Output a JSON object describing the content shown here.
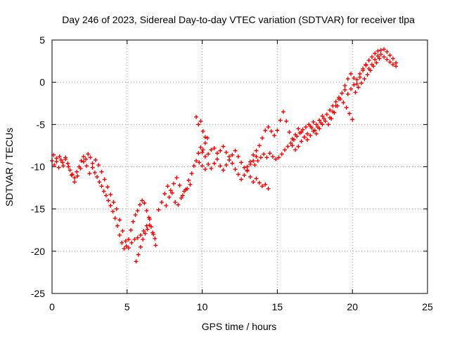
{
  "chart_data": {
    "type": "scatter",
    "title": "Day 246 of 2023, Sidereal Day-to-day VTEC variation (SDTVAR) for receiver tlpa",
    "xlabel": "GPS time / hours",
    "ylabel": "SDTVAR / TECUs",
    "xlim": [
      0,
      25
    ],
    "ylim": [
      -25,
      5
    ],
    "xticks": [
      0,
      5,
      10,
      15,
      20,
      25
    ],
    "yticks": [
      -25,
      -20,
      -15,
      -10,
      -5,
      0,
      5
    ],
    "grid": true,
    "marker": "+",
    "color": "#ff0000",
    "series": [
      {
        "name": "SDTVAR",
        "points": [
          [
            0.0,
            -9.3
          ],
          [
            0.15,
            -9.8
          ],
          [
            0.3,
            -9.0
          ],
          [
            0.45,
            -10.1
          ],
          [
            0.6,
            -9.2
          ],
          [
            0.75,
            -9.9
          ],
          [
            0.9,
            -8.9
          ],
          [
            1.05,
            -9.6
          ],
          [
            1.2,
            -10.4
          ],
          [
            1.35,
            -10.9
          ],
          [
            1.5,
            -11.3
          ],
          [
            1.65,
            -10.6
          ],
          [
            1.8,
            -10.0
          ],
          [
            1.95,
            -9.3
          ],
          [
            2.1,
            -8.8
          ],
          [
            2.25,
            -9.1
          ],
          [
            2.4,
            -8.5
          ],
          [
            2.55,
            -8.9
          ],
          [
            2.7,
            -9.6
          ],
          [
            2.85,
            -10.7
          ],
          [
            3.0,
            -11.2
          ],
          [
            3.15,
            -11.8
          ],
          [
            3.3,
            -12.3
          ],
          [
            3.45,
            -12.9
          ],
          [
            3.6,
            -13.4
          ],
          [
            3.75,
            -14.0
          ],
          [
            3.9,
            -14.6
          ],
          [
            4.05,
            -15.3
          ],
          [
            4.2,
            -16.1
          ],
          [
            4.35,
            -17.0
          ],
          [
            4.5,
            -18.1
          ],
          [
            4.65,
            -19.0
          ],
          [
            4.8,
            -19.7
          ],
          [
            4.95,
            -19.4
          ],
          [
            5.1,
            -18.6
          ],
          [
            5.25,
            -17.5
          ],
          [
            5.4,
            -16.5
          ],
          [
            5.55,
            -15.7
          ],
          [
            5.7,
            -15.2
          ],
          [
            5.85,
            -14.5
          ],
          [
            6.0,
            -14.0
          ],
          [
            6.15,
            -14.3
          ],
          [
            6.3,
            -15.2
          ],
          [
            6.45,
            -16.0
          ],
          [
            6.6,
            -17.1
          ],
          [
            6.75,
            -18.0
          ],
          [
            6.9,
            -19.3
          ],
          [
            0.1,
            -8.6
          ],
          [
            0.3,
            -9.4
          ],
          [
            0.5,
            -8.8
          ],
          [
            0.7,
            -9.5
          ],
          [
            0.9,
            -9.1
          ],
          [
            1.1,
            -10.0
          ],
          [
            1.3,
            -11.0
          ],
          [
            1.5,
            -11.8
          ],
          [
            1.7,
            -11.1
          ],
          [
            1.9,
            -10.2
          ],
          [
            2.1,
            -9.4
          ],
          [
            2.3,
            -9.9
          ],
          [
            2.5,
            -10.8
          ],
          [
            2.7,
            -10.1
          ],
          [
            2.9,
            -9.2
          ],
          [
            3.1,
            -9.8
          ],
          [
            3.3,
            -10.6
          ],
          [
            3.5,
            -11.5
          ],
          [
            3.7,
            -12.4
          ],
          [
            3.9,
            -13.3
          ],
          [
            4.1,
            -14.2
          ],
          [
            4.3,
            -15.0
          ],
          [
            4.5,
            -16.3
          ],
          [
            4.7,
            -17.6
          ],
          [
            4.9,
            -18.8
          ],
          [
            5.1,
            -19.6
          ],
          [
            5.3,
            -19.0
          ],
          [
            5.5,
            -18.6
          ],
          [
            5.7,
            -18.4
          ],
          [
            5.9,
            -18.1
          ],
          [
            6.1,
            -17.6
          ],
          [
            6.3,
            -17.0
          ],
          [
            6.5,
            -16.2
          ],
          [
            5.6,
            -21.2
          ],
          [
            5.75,
            -20.4
          ],
          [
            5.9,
            -19.5
          ],
          [
            6.05,
            -18.6
          ],
          [
            6.2,
            -17.9
          ],
          [
            6.35,
            -17.4
          ],
          [
            6.5,
            -16.9
          ],
          [
            6.7,
            -17.8
          ],
          [
            6.85,
            -18.5
          ],
          [
            7.1,
            -15.1
          ],
          [
            7.3,
            -14.2
          ],
          [
            7.5,
            -13.2
          ],
          [
            7.7,
            -12.3
          ],
          [
            7.9,
            -12.8
          ],
          [
            8.1,
            -12.0
          ],
          [
            8.3,
            -11.3
          ],
          [
            8.5,
            -12.2
          ],
          [
            8.7,
            -13.4
          ],
          [
            8.9,
            -12.7
          ],
          [
            9.1,
            -11.6
          ],
          [
            9.3,
            -10.8
          ],
          [
            7.6,
            -14.6
          ],
          [
            7.8,
            -13.6
          ],
          [
            8.0,
            -13.1
          ],
          [
            8.2,
            -14.2
          ],
          [
            8.4,
            -14.5
          ],
          [
            8.6,
            -13.7
          ],
          [
            8.8,
            -12.9
          ],
          [
            9.0,
            -12.6
          ],
          [
            9.2,
            -12.1
          ],
          [
            9.45,
            -9.9
          ],
          [
            9.6,
            -9.3
          ],
          [
            9.75,
            -8.4
          ],
          [
            9.9,
            -7.7
          ],
          [
            10.05,
            -8.0
          ],
          [
            10.2,
            -7.2
          ],
          [
            10.35,
            -6.6
          ],
          [
            9.6,
            -4.1
          ],
          [
            9.75,
            -5.0
          ],
          [
            9.9,
            -4.6
          ],
          [
            10.05,
            -5.8
          ],
          [
            10.2,
            -6.5
          ],
          [
            9.8,
            -9.5
          ],
          [
            10.0,
            -9.9
          ],
          [
            10.2,
            -10.3
          ],
          [
            10.4,
            -9.7
          ],
          [
            10.6,
            -10.2
          ],
          [
            10.8,
            -9.6
          ],
          [
            11.0,
            -9.1
          ],
          [
            11.2,
            -9.9
          ],
          [
            11.4,
            -10.4
          ],
          [
            11.6,
            -9.8
          ],
          [
            11.8,
            -9.2
          ],
          [
            12.0,
            -8.6
          ],
          [
            12.2,
            -8.1
          ],
          [
            12.4,
            -8.8
          ],
          [
            12.6,
            -9.5
          ],
          [
            12.8,
            -10.1
          ],
          [
            13.0,
            -10.5
          ],
          [
            13.2,
            -11.2
          ],
          [
            13.4,
            -11.8
          ],
          [
            13.6,
            -11.4
          ],
          [
            13.8,
            -11.9
          ],
          [
            14.0,
            -12.3
          ],
          [
            14.2,
            -12.1
          ],
          [
            14.4,
            -12.6
          ],
          [
            10.0,
            -8.3
          ],
          [
            10.2,
            -8.8
          ],
          [
            10.4,
            -8.5
          ],
          [
            10.6,
            -8.0
          ],
          [
            10.8,
            -7.8
          ],
          [
            11.0,
            -8.4
          ],
          [
            11.2,
            -8.1
          ],
          [
            11.4,
            -7.6
          ],
          [
            11.6,
            -8.3
          ],
          [
            11.8,
            -8.8
          ],
          [
            12.0,
            -9.6
          ],
          [
            12.2,
            -10.3
          ],
          [
            12.4,
            -10.9
          ],
          [
            12.6,
            -11.5
          ],
          [
            12.8,
            -11.0
          ],
          [
            13.0,
            -10.4
          ],
          [
            13.2,
            -9.7
          ],
          [
            13.4,
            -9.3
          ],
          [
            13.6,
            -8.8
          ],
          [
            13.0,
            -10.0
          ],
          [
            13.2,
            -9.4
          ],
          [
            13.4,
            -8.6
          ],
          [
            13.6,
            -8.1
          ],
          [
            13.8,
            -7.5
          ],
          [
            14.0,
            -6.6
          ],
          [
            14.2,
            -5.7
          ],
          [
            14.4,
            -5.3
          ],
          [
            14.6,
            -5.8
          ],
          [
            14.8,
            -6.3
          ],
          [
            15.0,
            -5.7
          ],
          [
            15.2,
            -4.5
          ],
          [
            15.4,
            -3.5
          ],
          [
            15.6,
            -4.6
          ],
          [
            15.8,
            -5.9
          ],
          [
            16.0,
            -6.7
          ],
          [
            16.2,
            -6.2
          ],
          [
            16.4,
            -5.5
          ],
          [
            16.6,
            -5.9
          ],
          [
            16.8,
            -6.5
          ],
          [
            17.0,
            -6.1
          ],
          [
            17.2,
            -5.2
          ],
          [
            17.4,
            -4.7
          ],
          [
            17.6,
            -5.0
          ],
          [
            17.8,
            -4.5
          ],
          [
            18.0,
            -4.0
          ],
          [
            18.2,
            -4.6
          ],
          [
            18.4,
            -5.0
          ],
          [
            18.6,
            -4.3
          ],
          [
            18.8,
            -3.6
          ],
          [
            19.0,
            -2.8
          ],
          [
            19.2,
            -2.0
          ],
          [
            19.4,
            -2.4
          ],
          [
            19.6,
            -3.0
          ],
          [
            19.8,
            -3.7
          ],
          [
            20.0,
            -4.4
          ],
          [
            13.5,
            -9.8
          ],
          [
            13.7,
            -9.3
          ],
          [
            13.9,
            -8.9
          ],
          [
            14.1,
            -8.5
          ],
          [
            14.3,
            -8.9
          ],
          [
            14.5,
            -8.4
          ],
          [
            14.7,
            -8.8
          ],
          [
            14.9,
            -9.1
          ],
          [
            15.1,
            -8.9
          ],
          [
            15.3,
            -8.5
          ],
          [
            15.5,
            -8.0
          ],
          [
            15.7,
            -7.6
          ],
          [
            15.9,
            -7.2
          ],
          [
            16.1,
            -6.8
          ],
          [
            16.3,
            -6.4
          ],
          [
            16.5,
            -6.0
          ],
          [
            16.7,
            -5.6
          ],
          [
            16.9,
            -5.3
          ],
          [
            17.1,
            -5.0
          ],
          [
            17.3,
            -5.4
          ],
          [
            17.5,
            -5.7
          ],
          [
            17.7,
            -5.3
          ],
          [
            17.9,
            -4.8
          ],
          [
            18.1,
            -4.3
          ],
          [
            18.3,
            -3.8
          ],
          [
            18.5,
            -3.3
          ],
          [
            18.7,
            -2.8
          ],
          [
            18.9,
            -2.3
          ],
          [
            19.1,
            -1.8
          ],
          [
            19.3,
            -1.3
          ],
          [
            19.5,
            -0.9
          ],
          [
            19.7,
            -1.4
          ],
          [
            19.9,
            -0.8
          ],
          [
            20.1,
            -0.3
          ],
          [
            20.3,
            0.3
          ],
          [
            20.5,
            1.0
          ],
          [
            20.7,
            1.6
          ],
          [
            20.9,
            2.1
          ],
          [
            21.1,
            2.6
          ],
          [
            21.3,
            3.0
          ],
          [
            21.5,
            3.4
          ],
          [
            21.7,
            3.7
          ],
          [
            21.9,
            3.8
          ],
          [
            22.1,
            3.9
          ],
          [
            22.3,
            3.6
          ],
          [
            22.5,
            3.2
          ],
          [
            22.7,
            2.8
          ],
          [
            22.9,
            2.3
          ],
          [
            18.5,
            -4.2
          ],
          [
            18.7,
            -3.5
          ],
          [
            18.9,
            -2.8
          ],
          [
            19.1,
            -2.0
          ],
          [
            19.3,
            -1.3
          ],
          [
            19.5,
            -0.4
          ],
          [
            19.7,
            0.4
          ],
          [
            19.9,
            1.0
          ],
          [
            20.1,
            0.5
          ],
          [
            20.3,
            -0.2
          ],
          [
            20.5,
            0.6
          ],
          [
            20.7,
            1.4
          ],
          [
            20.9,
            2.0
          ],
          [
            21.1,
            1.6
          ],
          [
            21.3,
            2.1
          ],
          [
            21.5,
            2.7
          ],
          [
            21.7,
            3.1
          ],
          [
            21.9,
            3.3
          ],
          [
            22.1,
            3.0
          ],
          [
            22.3,
            2.7
          ],
          [
            22.5,
            2.4
          ],
          [
            22.7,
            2.1
          ],
          [
            22.9,
            1.9
          ],
          [
            16.0,
            -7.5
          ],
          [
            16.2,
            -8.0
          ],
          [
            16.4,
            -7.6
          ],
          [
            16.6,
            -7.0
          ],
          [
            16.8,
            -6.5
          ],
          [
            17.0,
            -6.8
          ],
          [
            17.2,
            -6.3
          ],
          [
            17.4,
            -5.8
          ],
          [
            17.6,
            -6.1
          ],
          [
            17.8,
            -5.5
          ],
          [
            18.0,
            -5.0
          ],
          [
            20.2,
            -1.2
          ],
          [
            20.4,
            -0.6
          ],
          [
            20.6,
            -0.1
          ],
          [
            20.8,
            0.4
          ],
          [
            21.0,
            0.9
          ],
          [
            21.2,
            1.4
          ],
          [
            21.4,
            1.9
          ],
          [
            21.6,
            2.3
          ],
          [
            21.8,
            2.8
          ]
        ]
      }
    ]
  }
}
